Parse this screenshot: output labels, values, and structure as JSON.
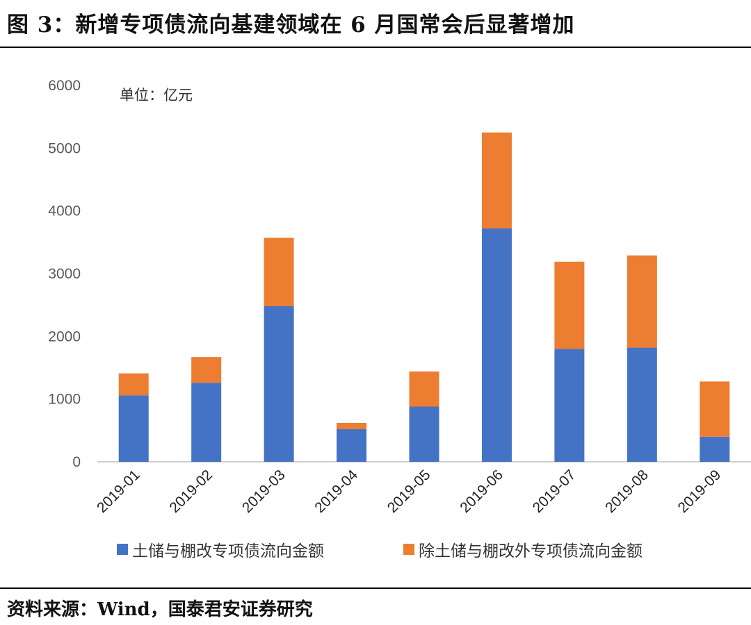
{
  "header": {
    "title": "图 3：新增专项债流向基建领域在 6 月国常会后显著增加"
  },
  "footer": {
    "source": "资料来源：Wind，国泰君安证券研究"
  },
  "chart_data": {
    "type": "bar",
    "stacked": true,
    "unit_label": "单位：亿元",
    "categories": [
      "2019-01",
      "2019-02",
      "2019-03",
      "2019-04",
      "2019-05",
      "2019-06",
      "2019-07",
      "2019-08",
      "2019-09"
    ],
    "series": [
      {
        "name": "土储与棚改专项债流向金额",
        "color": "#4472C4",
        "values": [
          1060,
          1260,
          2480,
          520,
          880,
          3720,
          1800,
          1820,
          400
        ]
      },
      {
        "name": "除土储与棚改外专项债流向金额",
        "color": "#ED7D31",
        "values": [
          350,
          410,
          1090,
          100,
          560,
          1530,
          1390,
          1470,
          880
        ]
      }
    ],
    "ylim": [
      0,
      6000
    ],
    "yticks": [
      0,
      1000,
      2000,
      3000,
      4000,
      5000,
      6000
    ],
    "grid": false,
    "legend_position": "bottom"
  }
}
